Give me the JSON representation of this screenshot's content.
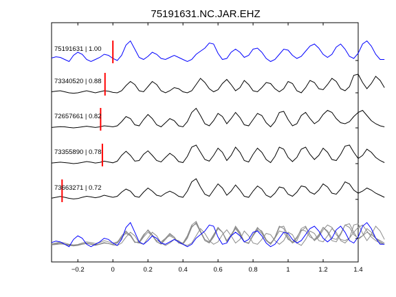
{
  "chart_data": {
    "type": "line",
    "title": "75191631.NC.JAR.EHZ",
    "xlabel": "",
    "ylabel": "",
    "xlim": [
      -0.35,
      1.4
    ],
    "x_ticks": [
      -0.2,
      0,
      0.2,
      0.4,
      0.6,
      0.8,
      1,
      1.2,
      1.4
    ],
    "x_tick_labels": [
      "−0.2",
      "0",
      "0.2",
      "0.4",
      "0.6",
      "0.8",
      "1",
      "1.2",
      "1.4"
    ],
    "grid": false,
    "series": [
      {
        "label": "75191631 | 1.00",
        "color": "#0000ff",
        "pick_time": 0.0,
        "t0": -0.35,
        "dt": 0.025,
        "values": [
          0.12,
          0.18,
          0.15,
          0.05,
          -0.05,
          0.25,
          0.4,
          0.3,
          0.05,
          -0.05,
          0.05,
          0.15,
          0.3,
          0.25,
          0.1,
          0.0,
          0.25,
          0.75,
          0.95,
          0.55,
          0.15,
          0.05,
          0.2,
          0.4,
          0.3,
          0.1,
          0.05,
          0.15,
          0.25,
          0.15,
          0.05,
          -0.05,
          0.05,
          0.3,
          0.45,
          0.6,
          0.85,
          0.8,
          0.35,
          0.05,
          0.1,
          0.4,
          0.55,
          0.4,
          0.15,
          0.25,
          0.55,
          0.6,
          0.4,
          0.1,
          -0.05,
          0.05,
          0.3,
          0.55,
          0.5,
          0.25,
          0.1,
          0.2,
          0.45,
          0.7,
          0.8,
          0.6,
          0.3,
          0.15,
          0.3,
          0.65,
          0.8,
          0.55,
          0.2,
          0.1,
          0.35,
          0.8,
          0.95,
          0.7,
          0.3,
          0.05,
          0.05
        ]
      },
      {
        "label": "73340520 | 0.88",
        "color": "#000000",
        "pick_time": -0.045,
        "t0": -0.35,
        "dt": 0.025,
        "values": [
          0.05,
          0.08,
          0.1,
          0.05,
          0.0,
          -0.02,
          0.0,
          0.05,
          0.1,
          0.05,
          0.0,
          0.05,
          0.1,
          0.08,
          0.02,
          0.0,
          0.1,
          0.35,
          0.55,
          0.4,
          0.1,
          0.05,
          0.3,
          0.55,
          0.4,
          0.1,
          0.0,
          0.1,
          0.25,
          0.2,
          0.05,
          0.0,
          0.1,
          0.4,
          0.7,
          0.5,
          0.2,
          0.05,
          0.15,
          0.45,
          0.65,
          0.4,
          0.1,
          0.25,
          0.6,
          0.4,
          0.1,
          0.05,
          0.25,
          0.5,
          0.45,
          0.2,
          0.05,
          0.2,
          0.55,
          0.45,
          0.1,
          0.0,
          0.25,
          0.6,
          0.5,
          0.2,
          0.15,
          0.4,
          0.7,
          0.55,
          0.2,
          0.1,
          0.3,
          0.85,
          0.9,
          0.5,
          0.2,
          0.45,
          0.8,
          0.6,
          0.25
        ]
      },
      {
        "label": "72657661 | 0.82",
        "color": "#000000",
        "pick_time": -0.07,
        "t0": -0.35,
        "dt": 0.025,
        "values": [
          0.02,
          0.04,
          0.06,
          0.05,
          0.02,
          0.0,
          0.02,
          0.05,
          0.08,
          0.05,
          0.02,
          0.05,
          0.1,
          0.08,
          0.05,
          0.1,
          0.3,
          0.55,
          0.45,
          0.15,
          0.1,
          0.4,
          0.65,
          0.45,
          0.15,
          0.05,
          0.25,
          0.45,
          0.35,
          0.1,
          0.05,
          0.3,
          0.75,
          0.95,
          0.6,
          0.2,
          0.1,
          0.35,
          0.7,
          0.55,
          0.2,
          0.45,
          0.75,
          0.5,
          0.15,
          0.1,
          0.4,
          0.7,
          0.6,
          0.25,
          0.05,
          0.3,
          0.75,
          0.8,
          0.4,
          0.1,
          0.2,
          0.6,
          0.75,
          0.45,
          0.2,
          0.35,
          0.65,
          0.85,
          0.75,
          0.45,
          0.25,
          0.2,
          0.3,
          0.55,
          0.75,
          0.85,
          0.6,
          0.35,
          0.2,
          0.1,
          0.05
        ]
      },
      {
        "label": "73355890 | 0.78",
        "color": "#000000",
        "pick_time": -0.06,
        "t0": -0.35,
        "dt": 0.025,
        "values": [
          0.03,
          0.05,
          0.07,
          0.05,
          0.03,
          0.0,
          0.02,
          0.06,
          0.1,
          0.07,
          0.03,
          0.06,
          0.12,
          0.08,
          0.04,
          0.12,
          0.4,
          0.6,
          0.4,
          0.12,
          0.15,
          0.45,
          0.62,
          0.4,
          0.15,
          0.08,
          0.3,
          0.5,
          0.35,
          0.1,
          0.05,
          0.35,
          0.8,
          0.9,
          0.55,
          0.2,
          0.12,
          0.4,
          0.75,
          0.55,
          0.15,
          0.4,
          0.8,
          0.55,
          0.15,
          0.08,
          0.45,
          0.75,
          0.55,
          0.2,
          0.05,
          0.35,
          0.8,
          0.7,
          0.3,
          0.1,
          0.3,
          0.7,
          0.8,
          0.45,
          0.2,
          0.4,
          0.75,
          0.55,
          0.2,
          0.15,
          0.45,
          0.85,
          0.9,
          0.55,
          0.25,
          0.4,
          0.7,
          0.55,
          0.3,
          0.15,
          0.05
        ]
      },
      {
        "label": "73663271 | 0.72",
        "color": "#000000",
        "pick_time": -0.29,
        "t0": -0.35,
        "dt": 0.025,
        "values": [
          0.06,
          0.1,
          0.14,
          0.1,
          0.05,
          0.02,
          0.04,
          0.1,
          0.15,
          0.12,
          0.08,
          0.12,
          0.2,
          0.15,
          0.1,
          0.15,
          0.35,
          0.5,
          0.4,
          0.15,
          0.1,
          0.35,
          0.55,
          0.4,
          0.2,
          0.15,
          0.3,
          0.4,
          0.3,
          0.15,
          0.1,
          0.4,
          0.85,
          1.0,
          0.6,
          0.25,
          0.15,
          0.45,
          0.75,
          0.55,
          0.2,
          0.4,
          0.7,
          0.45,
          0.15,
          0.1,
          0.4,
          0.65,
          0.5,
          0.2,
          0.1,
          0.3,
          0.6,
          0.55,
          0.25,
          0.15,
          0.35,
          0.65,
          0.6,
          0.35,
          0.25,
          0.45,
          0.75,
          0.6,
          0.3,
          0.25,
          0.5,
          0.85,
          0.75,
          0.45,
          0.3,
          0.4,
          0.55,
          0.45,
          0.3,
          0.2,
          0.1
        ]
      }
    ]
  }
}
